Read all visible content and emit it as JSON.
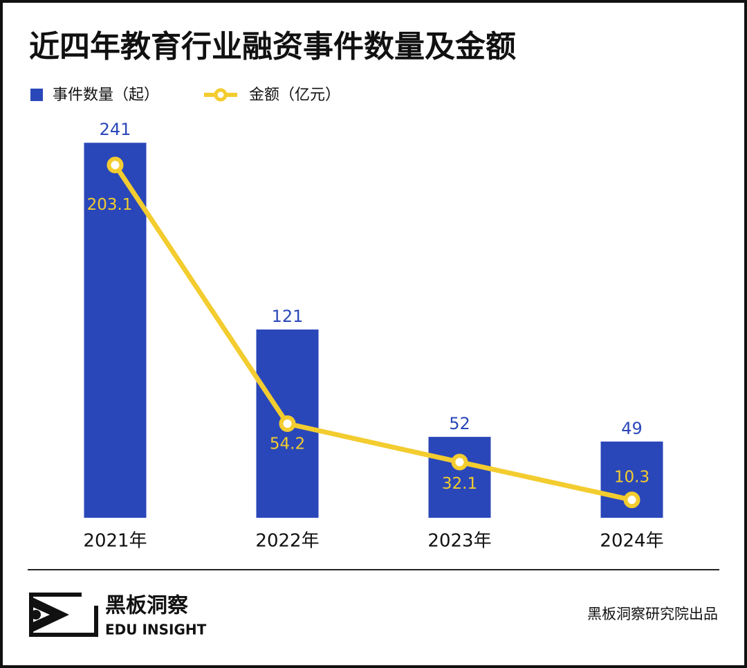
{
  "chart_data": {
    "type": "bar-line",
    "title": "近四年教育行业融资事件数量及金额",
    "categories": [
      "2021年",
      "2022年",
      "2023年",
      "2024年"
    ],
    "series": [
      {
        "name": "事件数量（起）",
        "type": "bar",
        "color": "#2a47b9",
        "values": [
          241,
          121,
          52,
          49
        ]
      },
      {
        "name": "金额（亿元）",
        "type": "line",
        "axis": "y2",
        "color": "#f3cc2f",
        "values": [
          203.1,
          54.2,
          32.1,
          10.3
        ]
      }
    ],
    "ylim": [
      0,
      250
    ],
    "y2lim": [
      0,
      224
    ],
    "grid": false
  },
  "footer": {
    "brand": "黑板洞察",
    "brand_en": "EDU INSIGHT",
    "source": "黑板洞察研究院出品"
  }
}
